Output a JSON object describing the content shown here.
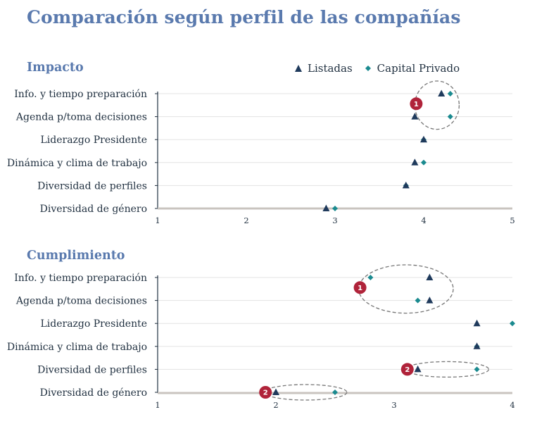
{
  "title": "Comparación según perfil de las compañías",
  "colors": {
    "title": "#5a7aae",
    "listadas": "#1f3a5c",
    "capital_privado": "#1a8a8f",
    "badge": "#b0233a",
    "grid": "#e3e3e3",
    "axis": "#c9c4bf"
  },
  "legend": {
    "items": [
      {
        "label": "Listadas",
        "marker": "triangle",
        "color": "#1f3a5c"
      },
      {
        "label": "Capital Privado",
        "marker": "diamond",
        "color": "#1a8a8f"
      }
    ]
  },
  "chart_data": [
    {
      "type": "scatter",
      "title": "Impacto",
      "categories": [
        "Info. y tiempo preparación",
        "Agenda p/toma decisiones",
        "Liderazgo Presidente",
        "Dinámica y clima de trabajo",
        "Diversidad de perfiles",
        "Diversidad de género"
      ],
      "series": [
        {
          "name": "Listadas",
          "marker": "triangle",
          "values": [
            4.2,
            3.9,
            4.0,
            3.9,
            3.8,
            2.9
          ]
        },
        {
          "name": "Capital Privado",
          "marker": "diamond",
          "values": [
            4.3,
            4.3,
            4.0,
            4.0,
            3.8,
            3.0
          ]
        }
      ],
      "xlim": [
        1,
        5
      ],
      "xticks": [
        "1",
        "2",
        "3",
        "4",
        "5"
      ],
      "grid": "horizontal",
      "annotations": [
        {
          "badge": "1",
          "categories": [
            0,
            1
          ],
          "range": [
            3.9,
            4.4
          ]
        }
      ]
    },
    {
      "type": "scatter",
      "title": "Cumplimiento",
      "categories": [
        "Info. y tiempo preparación",
        "Agenda p/toma decisiones",
        "Liderazgo Presidente",
        "Dinámica y clima de trabajo",
        "Diversidad de perfiles",
        "Diversidad de género"
      ],
      "series": [
        {
          "name": "Listadas",
          "marker": "triangle",
          "values": [
            3.3,
            3.3,
            3.7,
            3.7,
            3.2,
            2.0
          ]
        },
        {
          "name": "Capital Privado",
          "marker": "diamond",
          "values": [
            2.8,
            3.2,
            4.0,
            3.7,
            3.7,
            2.5
          ]
        }
      ],
      "xlim": [
        1,
        4
      ],
      "xticks": [
        "1",
        "2",
        "3",
        "4"
      ],
      "grid": "horizontal",
      "annotations": [
        {
          "badge": "1",
          "categories": [
            0,
            1
          ],
          "range": [
            2.7,
            3.5
          ]
        },
        {
          "badge": "2",
          "categories": [
            4
          ],
          "range": [
            3.1,
            3.8
          ]
        },
        {
          "badge": "2",
          "categories": [
            5
          ],
          "range": [
            1.9,
            2.6
          ]
        }
      ]
    }
  ]
}
